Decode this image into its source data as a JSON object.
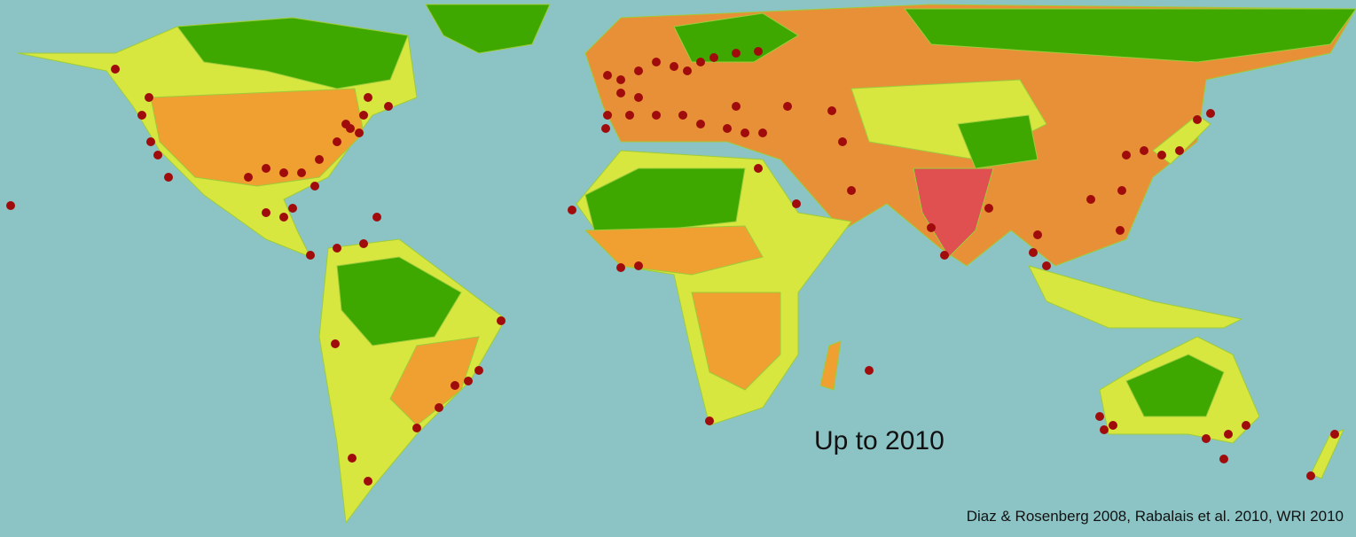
{
  "title": "Up to 2010",
  "source": "Diaz & Rosenberg 2008, Rabalais et al. 2010, WRI 2010"
}
